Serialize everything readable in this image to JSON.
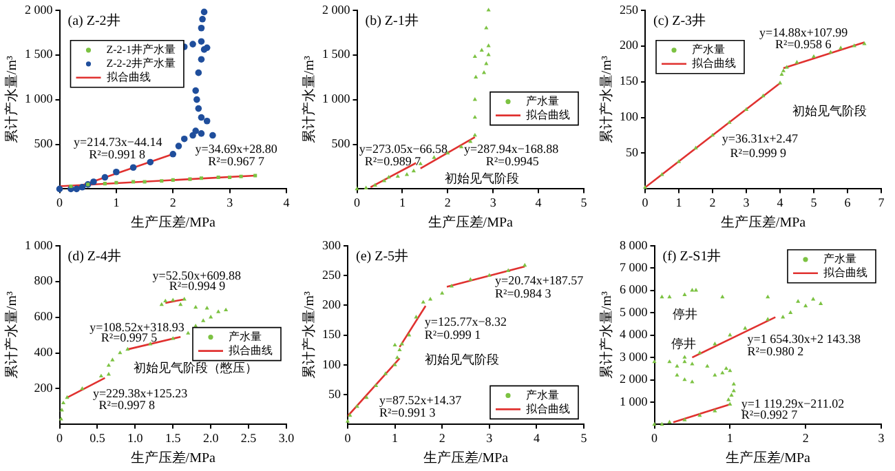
{
  "chart_data": [
    {
      "type": "scatter",
      "title": "(a) Z-2井",
      "xlabel": "生产压差/MPa",
      "ylabel": "累计产水量/m³",
      "xlim": [
        0,
        4
      ],
      "ylim": [
        0,
        2000
      ],
      "xticks": [
        0,
        1,
        2,
        3,
        4
      ],
      "yticks": [
        500,
        {
          "value": 1000,
          "label": "1 000"
        },
        {
          "value": 1500,
          "label": "1 500"
        },
        {
          "value": 2000,
          "label": "2 000"
        }
      ],
      "legend": "top left",
      "series": [
        {
          "name": "Z-2-1井产水量",
          "type": "scatter",
          "marker": "square",
          "color": "#7cc242",
          "x": [
            0.2,
            0.5,
            0.8,
            1,
            1.3,
            1.5,
            1.8,
            2,
            2.3,
            2.5,
            2.8,
            3,
            3.2,
            3.45
          ],
          "values": [
            30,
            50,
            60,
            70,
            80,
            80,
            90,
            100,
            110,
            120,
            130,
            130,
            140,
            150
          ]
        },
        {
          "name": "Z-2-2井产水量",
          "type": "scatter",
          "marker": "circle",
          "color": "#1f4e9c",
          "x": [
            0,
            0.2,
            0.3,
            0.4,
            0.5,
            0.6,
            0.8,
            1,
            1.3,
            1.6,
            2,
            2.1,
            2.2,
            2.35,
            2.5,
            2.7,
            2.4,
            2.6,
            2.5,
            2.45,
            2.42,
            2.4,
            2.45,
            2.5,
            2.6,
            2.55,
            2.2,
            2.35,
            2.5,
            2.5,
            2.52,
            2.55
          ],
          "values": [
            0,
            0,
            0,
            20,
            50,
            80,
            130,
            190,
            240,
            300,
            390,
            480,
            560,
            600,
            620,
            600,
            650,
            760,
            800,
            900,
            1000,
            1100,
            1300,
            1450,
            1580,
            1560,
            1590,
            1620,
            1650,
            1800,
            1900,
            1980
          ]
        },
        {
          "name": "拟合曲线",
          "type": "line",
          "marker": "none",
          "color": "#e0312f",
          "x": [
            0.3,
            2
          ],
          "values": [
            20,
            390
          ]
        },
        {
          "type": "line",
          "marker": "none",
          "color": "#e0312f",
          "x": [
            0,
            3.45
          ],
          "values": [
            30,
            150
          ]
        }
      ],
      "annotations": [
        "y=214.73x−44.14",
        "R²=0.991 8",
        "y=34.69x+28.80",
        "R²=0.967 7"
      ]
    },
    {
      "type": "scatter",
      "title": "(b) Z-1井",
      "xlabel": "生产压差/MPa",
      "ylabel": "累计产水量/m³",
      "xlim": [
        0,
        5
      ],
      "ylim": [
        0,
        2000
      ],
      "xticks": [
        0,
        1,
        2,
        3,
        4,
        5
      ],
      "yticks": [
        500,
        {
          "value": 1000,
          "label": "1 000"
        },
        {
          "value": 1500,
          "label": "1 500"
        },
        {
          "value": 2000,
          "label": "2 000"
        }
      ],
      "legend": "right",
      "series": [
        {
          "name": "产水量",
          "type": "scatter",
          "marker": "triangle",
          "color": "#7cc242",
          "x": [
            0,
            0.2,
            0.4,
            0.6,
            0.7,
            0.9,
            1.1,
            1.25,
            1.4,
            1.7,
            2,
            2.3,
            2.5,
            2.6,
            2.6,
            2.6,
            2.62,
            2.8,
            2.85,
            2.9,
            2.6,
            2.75,
            2.9,
            2.85,
            2.9
          ],
          "values": [
            0,
            10,
            40,
            90,
            130,
            140,
            160,
            200,
            280,
            350,
            400,
            470,
            530,
            600,
            800,
            1000,
            1250,
            1300,
            1400,
            1500,
            1480,
            1550,
            1600,
            1800,
            2000
          ]
        },
        {
          "name": "拟合曲线",
          "type": "line",
          "marker": "none",
          "color": "#e0312f",
          "x": [
            0.3,
            1.3
          ],
          "values": [
            20,
            290
          ]
        },
        {
          "type": "line",
          "marker": "none",
          "color": "#e0312f",
          "x": [
            1.4,
            2.6
          ],
          "values": [
            230,
            580
          ]
        }
      ],
      "annotations": [
        "y=273.05x−66.58",
        "R²=0.989 7",
        "y=287.94x−168.88",
        "R²=0.9945",
        "初始见气阶段"
      ]
    },
    {
      "type": "scatter",
      "title": "(c) Z-3井",
      "xlabel": "生产压差/MPa",
      "ylabel": "累计产水量/m³",
      "xlim": [
        0,
        7
      ],
      "ylim": [
        0,
        250
      ],
      "xticks": [
        0,
        1,
        2,
        3,
        4,
        5,
        6,
        7
      ],
      "yticks": [
        50,
        100,
        150,
        200,
        250
      ],
      "legend": "top left",
      "series": [
        {
          "name": "产水量",
          "type": "scatter",
          "marker": "triangle",
          "color": "#7cc242",
          "x": [
            0,
            0.5,
            1,
            1.5,
            2,
            2.5,
            3,
            3.5,
            4,
            4.05,
            4.1,
            4.2,
            4.5,
            5,
            5.5,
            5.8,
            6.2,
            6.5
          ],
          "values": [
            2,
            20,
            38,
            57,
            75,
            93,
            111,
            130,
            148,
            160,
            165,
            170,
            177,
            185,
            191,
            197,
            200,
            203
          ]
        },
        {
          "name": "拟合曲线",
          "type": "line",
          "marker": "none",
          "color": "#e0312f",
          "x": [
            0,
            4
          ],
          "values": [
            2,
            148
          ]
        },
        {
          "type": "line",
          "marker": "none",
          "color": "#e0312f",
          "x": [
            4.1,
            6.5
          ],
          "values": [
            169,
            205
          ]
        }
      ],
      "annotations": [
        "y=14.88x+107.99",
        "R²=0.958 6",
        "初始见气阶段",
        "y=36.31x+2.47",
        "R²=0.999 9"
      ]
    },
    {
      "type": "scatter",
      "title": "(d) Z-4井",
      "xlabel": "生产压差/MPa",
      "ylabel": "累计产水量/m³",
      "xlim": [
        0,
        3
      ],
      "ylim": [
        0,
        1000
      ],
      "xticks": [
        0,
        0.5,
        {
          "value": 1,
          "label": "1.0"
        },
        1.5,
        {
          "value": 2,
          "label": "2.0"
        },
        2.5,
        {
          "value": 3,
          "label": "3.0"
        }
      ],
      "yticks": [
        200,
        400,
        600,
        800,
        {
          "value": 1000,
          "label": "1 000"
        }
      ],
      "legend": "right",
      "series": [
        {
          "name": "产水量",
          "type": "scatter",
          "marker": "triangle",
          "color": "#7cc242",
          "x": [
            0.02,
            0.03,
            0.05,
            0.1,
            0.3,
            0.55,
            0.65,
            0.65,
            0.7,
            0.8,
            0.9,
            1.2,
            1.5,
            1.7,
            1.8,
            1.9,
            2,
            2.1,
            2.2,
            1.35,
            1.4,
            1.5,
            1.65,
            1.6,
            1.8,
            1.95
          ],
          "values": [
            30,
            80,
            120,
            150,
            200,
            270,
            280,
            330,
            360,
            400,
            420,
            450,
            480,
            510,
            550,
            580,
            600,
            630,
            640,
            670,
            690,
            695,
            700,
            670,
            655,
            650
          ]
        },
        {
          "name": "拟合曲线",
          "type": "line",
          "marker": "none",
          "color": "#e0312f",
          "x": [
            0.1,
            0.6
          ],
          "values": [
            150,
            260
          ]
        },
        {
          "type": "line",
          "marker": "none",
          "color": "#e0312f",
          "x": [
            0.9,
            1.6
          ],
          "values": [
            420,
            490
          ]
        },
        {
          "type": "line",
          "marker": "none",
          "color": "#e0312f",
          "x": [
            1.4,
            1.65
          ],
          "values": [
            680,
            700
          ]
        }
      ],
      "annotations": [
        "y=52.50x+609.88",
        "R²=0.994 9",
        "y=108.52x+318.93",
        "R²=0.997 5",
        "初始见气阶段（憋压）",
        "y=229.38x+125.23",
        "R²=0.997 8"
      ]
    },
    {
      "type": "scatter",
      "title": "(e) Z-5井",
      "xlabel": "生产压差/MPa",
      "ylabel": "累计产水量/m³",
      "xlim": [
        0,
        5
      ],
      "ylim": [
        0,
        300
      ],
      "xticks": [
        0,
        1,
        2,
        3,
        4,
        5
      ],
      "yticks": [
        50,
        100,
        150,
        200,
        250,
        300
      ],
      "legend": "bottom right",
      "series": [
        {
          "name": "产水量",
          "type": "scatter",
          "marker": "triangle",
          "color": "#7cc242",
          "x": [
            0,
            0.05,
            0.2,
            0.4,
            0.6,
            0.8,
            1,
            1.05,
            1,
            1.1,
            1.15,
            1.3,
            1.45,
            1.6,
            1.75,
            2,
            2.2,
            2.6,
            3,
            3.4,
            3.75
          ],
          "values": [
            5,
            15,
            30,
            45,
            65,
            85,
            100,
            112,
            133,
            125,
            135,
            150,
            180,
            205,
            210,
            220,
            232,
            243,
            250,
            258,
            267
          ]
        },
        {
          "name": "拟合曲线",
          "type": "line",
          "marker": "none",
          "color": "#e0312f",
          "x": [
            0,
            1.1
          ],
          "values": [
            14,
            111
          ]
        },
        {
          "type": "line",
          "marker": "none",
          "color": "#e0312f",
          "x": [
            1.1,
            1.65
          ],
          "values": [
            130,
            199
          ]
        },
        {
          "type": "line",
          "marker": "none",
          "color": "#e0312f",
          "x": [
            2.1,
            3.75
          ],
          "values": [
            231,
            265
          ]
        }
      ],
      "annotations": [
        "y=20.74x+187.57",
        "R²=0.984 3",
        "y=125.77x−8.32",
        "R²=0.999 1",
        "初始见气阶段",
        "y=87.52x+14.37",
        "R²=0.991 3"
      ]
    },
    {
      "type": "scatter",
      "title": "(f) Z-S1井",
      "xlabel": "生产压差/MPa",
      "ylabel": "累计产水量/m³",
      "xlim": [
        0,
        3
      ],
      "ylim": [
        0,
        8000
      ],
      "xticks": [
        0,
        1,
        2,
        3
      ],
      "yticks": [
        {
          "value": 1000,
          "label": "1 000"
        },
        {
          "value": 2000,
          "label": "2 000"
        },
        {
          "value": 3000,
          "label": "3 000"
        },
        {
          "value": 4000,
          "label": "4 000"
        },
        {
          "value": 5000,
          "label": "5 000"
        },
        {
          "value": 6000,
          "label": "6 000"
        },
        {
          "value": 7000,
          "label": "7 000"
        },
        {
          "value": 8000,
          "label": "8 000"
        }
      ],
      "legend": "top right",
      "series": [
        {
          "name": "产水量",
          "type": "scatter",
          "marker": "triangle",
          "color": "#7cc242",
          "x": [
            0,
            0.1,
            0.2,
            0.4,
            0.6,
            0.8,
            1,
            0.98,
            1.02,
            1.05,
            1.05,
            0.5,
            0.4,
            0.3,
            0.8,
            0.95,
            0.9,
            1,
            0.7,
            0.5,
            0.4,
            0.3,
            0,
            0.2,
            0.4,
            0.6,
            0.8,
            1,
            1.2,
            1.5,
            1.8,
            2,
            1.9,
            2.1,
            2.2,
            1.7,
            0.1,
            0.2,
            0.4,
            0.55,
            0.5,
            0.9,
            1.5
          ],
          "values": [
            0,
            0,
            100,
            200,
            400,
            600,
            900,
            1100,
            1300,
            1500,
            1800,
            1900,
            2000,
            2200,
            2200,
            2500,
            2300,
            2400,
            2600,
            2700,
            2800,
            2600,
            2800,
            2800,
            3000,
            3200,
            3600,
            4000,
            4300,
            4700,
            5000,
            5300,
            5500,
            5600,
            5400,
            4800,
            5700,
            5700,
            5800,
            6000,
            6000,
            5700,
            5700
          ]
        },
        {
          "name": "拟合曲线",
          "type": "line",
          "marker": "none",
          "color": "#e0312f",
          "x": [
            0.25,
            1
          ],
          "values": [
            100,
            900
          ]
        },
        {
          "type": "line",
          "marker": "none",
          "color": "#e0312f",
          "x": [
            0.5,
            1.6
          ],
          "values": [
            3000,
            4800
          ]
        }
      ],
      "annotations": [
        "y=1 654.30x+2 143.38",
        "R²=0.980 2",
        "y=1 119.29x−211.02",
        "R²=0.992 7",
        "停井",
        "停井"
      ]
    }
  ]
}
